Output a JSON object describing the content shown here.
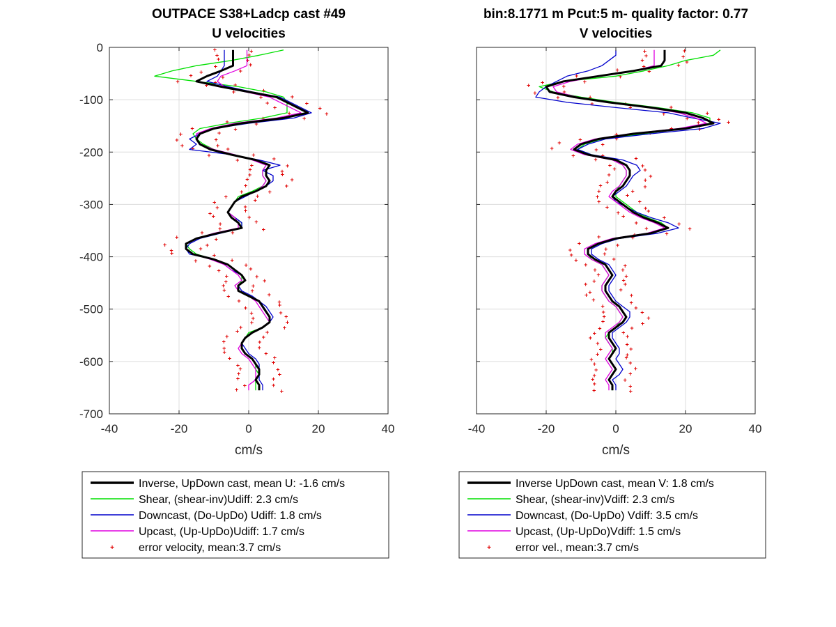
{
  "colors": {
    "inverse": "#000000",
    "shear": "#00e000",
    "downcast": "#0000cc",
    "upcast": "#e000e0",
    "error": "#e00000",
    "grid": "#dcdcdc",
    "axis": "#262626"
  },
  "chart_data": [
    {
      "type": "line",
      "title": "OUTPACE S38+Ladcp cast #49",
      "subtitle": "U velocities",
      "xlabel": "cm/s",
      "ylabel": "",
      "xlim": [
        -40,
        40
      ],
      "ylim": [
        -700,
        0
      ],
      "xticks": [
        "-40",
        "-20",
        "0",
        "20",
        "40"
      ],
      "yticks": [
        "0",
        "-100",
        "-200",
        "-300",
        "-400",
        "-500",
        "-600",
        "-700"
      ],
      "grid": true,
      "depth": [
        -5,
        -15,
        -25,
        -35,
        -45,
        -55,
        -65,
        -75,
        -85,
        -95,
        -105,
        -115,
        -125,
        -135,
        -145,
        -155,
        -165,
        -175,
        -185,
        -195,
        -205,
        -215,
        -225,
        -235,
        -245,
        -255,
        -265,
        -275,
        -285,
        -295,
        -305,
        -315,
        -325,
        -335,
        -345,
        -355,
        -365,
        -375,
        -385,
        -395,
        -405,
        -415,
        -425,
        -435,
        -445,
        -455,
        -465,
        -475,
        -485,
        -495,
        -505,
        -515,
        -525,
        -535,
        -545,
        -555,
        -565,
        -575,
        -585,
        -595,
        -605,
        -615,
        -625,
        -635,
        -645,
        -655
      ],
      "series": [
        {
          "name": "Inverse, UpDown cast, mean U:  -1.6 cm/s",
          "key": "inverse",
          "values": [
            -4.5,
            -4.5,
            -4.5,
            -4.5,
            -8,
            -12,
            -15,
            -8,
            0,
            8,
            11,
            14,
            17,
            10,
            -2,
            -10,
            -14,
            -15,
            -14,
            -11,
            -5,
            2,
            6,
            5,
            5,
            6,
            5,
            2,
            -2,
            -4,
            -5,
            -6,
            -5,
            -3,
            -2,
            -9,
            -15,
            -18,
            -18,
            -16,
            -10,
            -6,
            -4,
            -2,
            -1,
            -3,
            -3,
            0,
            3,
            4,
            5,
            6,
            6,
            4,
            1,
            -1,
            -2,
            -2,
            -1,
            1,
            2,
            3,
            3,
            2,
            3,
            3
          ]
        },
        {
          "name": "Shear, (shear-inv)Udiff:  2.3 cm/s",
          "key": "shear",
          "values": [
            10,
            3,
            -5,
            -15,
            -22,
            -27,
            -15,
            -3,
            5,
            10,
            11,
            11,
            11,
            4,
            -6,
            -14,
            -16,
            -15,
            -13,
            -10,
            -5,
            2,
            5,
            4,
            4,
            5,
            4,
            1,
            -3,
            -4,
            -5,
            -6,
            -4,
            -2,
            -2,
            -9,
            -15,
            -18,
            -17,
            -15,
            -10,
            -6,
            -4,
            -2,
            -2,
            -3,
            -3,
            0,
            3,
            4,
            5,
            6,
            6,
            4,
            0,
            -1,
            -2,
            -2,
            -1,
            1,
            2,
            2,
            3,
            2,
            2,
            2
          ]
        },
        {
          "name": "Downcast, (Do-UpDo) Udiff:  1.8 cm/s",
          "key": "downcast",
          "values": [
            -7,
            -7,
            -7,
            -7,
            -8,
            -9,
            -12,
            -6,
            1,
            9,
            12,
            15,
            18,
            13,
            0,
            -10,
            -14,
            -17,
            -15,
            -17,
            -5,
            3,
            9,
            4,
            7,
            7,
            5,
            2,
            -1,
            -4,
            -5,
            -6,
            -4,
            -2,
            -2,
            -8,
            -14,
            -17,
            -18,
            -17,
            -10,
            -7,
            -5,
            -2,
            -1,
            -3,
            -2,
            1,
            3,
            5,
            6,
            7,
            6,
            4,
            1,
            -1,
            -2,
            -1,
            0,
            2,
            3,
            3,
            3,
            3,
            4,
            4
          ]
        },
        {
          "name": "Upcast, (Up-UpDo)Udiff:  1.7 cm/s",
          "key": "upcast",
          "values": [
            -0.5,
            -0.5,
            -0.5,
            -0.5,
            -4,
            -8,
            -9,
            -7,
            -1,
            6,
            9,
            12,
            15,
            8,
            -4,
            -11,
            -15,
            -15,
            -14,
            -10,
            -4,
            1,
            5,
            4,
            4,
            5,
            4,
            2,
            -2,
            -4,
            -5,
            -6,
            -4,
            -3,
            -3,
            -10,
            -15,
            -18,
            -18,
            -16,
            -11,
            -7,
            -5,
            -3,
            -2,
            -4,
            -3,
            0,
            2,
            3,
            4,
            5,
            6,
            4,
            1,
            -1,
            -2,
            -3,
            -2,
            0,
            1,
            2,
            2,
            2,
            0,
            0
          ]
        }
      ],
      "error_velocity": {
        "name": "error velocity, mean:3.7 cm/s",
        "key": "error"
      },
      "legend_placement": "below"
    },
    {
      "type": "line",
      "title": "bin:8.1771 m  Pcut:5 m- quality factor:  0.77",
      "subtitle": "V velocities",
      "xlabel": "cm/s",
      "ylabel": "",
      "xlim": [
        -40,
        40
      ],
      "ylim": [
        -700,
        0
      ],
      "xticks": [
        "-40",
        "-20",
        "0",
        "20",
        "40"
      ],
      "yticks": [],
      "grid": true,
      "depth": [
        -5,
        -15,
        -25,
        -35,
        -45,
        -55,
        -65,
        -75,
        -85,
        -95,
        -105,
        -115,
        -125,
        -135,
        -145,
        -155,
        -165,
        -175,
        -185,
        -195,
        -205,
        -215,
        -225,
        -235,
        -245,
        -255,
        -265,
        -275,
        -285,
        -295,
        -305,
        -315,
        -325,
        -335,
        -345,
        -355,
        -365,
        -375,
        -385,
        -395,
        -405,
        -415,
        -425,
        -435,
        -445,
        -455,
        -465,
        -475,
        -485,
        -495,
        -505,
        -515,
        -525,
        -535,
        -545,
        -555,
        -565,
        -575,
        -585,
        -595,
        -605,
        -615,
        -625,
        -635,
        -645,
        -655
      ],
      "series": [
        {
          "name": "Inverse UpDown cast, mean V:  1.8 cm/s",
          "key": "inverse",
          "values": [
            14,
            14,
            14,
            13,
            5,
            -5,
            -15,
            -20,
            -19,
            -12,
            -2,
            10,
            20,
            25,
            28,
            20,
            5,
            -5,
            -10,
            -12,
            -8,
            0,
            3,
            4,
            4,
            3,
            2,
            0,
            -1,
            1,
            3,
            5,
            8,
            12,
            15,
            10,
            0,
            -5,
            -8,
            -8,
            -6,
            -3,
            -2,
            -1,
            -2,
            -3,
            -3,
            -2,
            -1,
            1,
            2,
            3,
            2,
            0,
            -2,
            -2,
            -1,
            0,
            -1,
            -2,
            -1,
            0,
            -1,
            -2,
            -1,
            -1
          ]
        },
        {
          "name": "Shear, (shear-inv)Vdiff:  2.3 cm/s",
          "key": "shear",
          "values": [
            30,
            28,
            20,
            15,
            8,
            0,
            -15,
            -22,
            -18,
            -10,
            0,
            12,
            22,
            27,
            27,
            20,
            8,
            -4,
            -9,
            -11,
            -7,
            0,
            2,
            3,
            3,
            2,
            1,
            0,
            0,
            2,
            4,
            6,
            9,
            13,
            15,
            10,
            0,
            -5,
            -8,
            -8,
            -7,
            -4,
            -3,
            -2,
            -3,
            -4,
            -4,
            -3,
            -2,
            0,
            1,
            2,
            1,
            0,
            -2,
            -3,
            -2,
            -1,
            -1,
            -2,
            -1,
            0,
            -1,
            -2,
            -1,
            -1
          ]
        },
        {
          "name": "Downcast, (Do-UpDo) Vdiff:  3.5 cm/s",
          "key": "downcast",
          "values": [
            0,
            0,
            -2,
            -4,
            -8,
            -14,
            -17,
            -20,
            -22,
            -23,
            -14,
            0,
            15,
            22,
            30,
            25,
            10,
            -3,
            -8,
            -11,
            -7,
            2,
            6,
            7,
            5,
            4,
            3,
            1,
            -1,
            0,
            3,
            6,
            10,
            15,
            18,
            12,
            1,
            -4,
            -7,
            -7,
            -5,
            -2,
            -1,
            0,
            -1,
            -2,
            -2,
            -1,
            0,
            2,
            4,
            4,
            3,
            1,
            -1,
            -1,
            0,
            1,
            1,
            0,
            1,
            2,
            1,
            -1,
            0,
            0
          ]
        },
        {
          "name": "Upcast, (Up-UpDo)Vdiff:  1.5 cm/s",
          "key": "upcast",
          "values": [
            11,
            11,
            11,
            11,
            5,
            -5,
            -13,
            -18,
            -17,
            -11,
            -2,
            9,
            18,
            23,
            26,
            18,
            4,
            -6,
            -11,
            -13,
            -9,
            -1,
            2,
            3,
            3,
            2,
            1,
            -1,
            -2,
            0,
            2,
            4,
            7,
            11,
            14,
            9,
            -1,
            -6,
            -9,
            -9,
            -7,
            -4,
            -3,
            -2,
            -3,
            -4,
            -4,
            -3,
            -2,
            0,
            1,
            2,
            1,
            -1,
            -3,
            -3,
            -2,
            -1,
            -2,
            -3,
            -2,
            -1,
            -2,
            -3,
            -2,
            -2
          ]
        }
      ],
      "error_velocity": {
        "name": "error vel., mean:3.7 cm/s",
        "key": "error"
      },
      "legend_placement": "below"
    }
  ]
}
